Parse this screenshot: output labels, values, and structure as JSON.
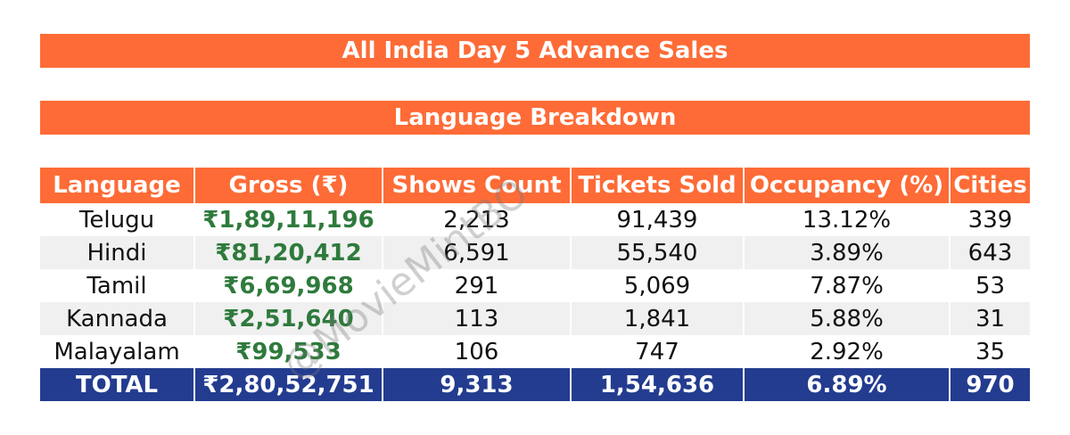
{
  "title": "All India Day 5 Advance Sales",
  "subtitle": "Language Breakdown",
  "columns": [
    "Language",
    "Gross (₹)",
    "Shows Count",
    "Tickets Sold",
    "Occupancy (%)",
    "Cities"
  ],
  "rows": [
    {
      "language": "Telugu",
      "gross": "₹1,89,11,196",
      "shows": "2,213",
      "tickets": "91,439",
      "occupancy": "13.12%",
      "cities": "339"
    },
    {
      "language": "Hindi",
      "gross": "₹81,20,412",
      "shows": "6,591",
      "tickets": "55,540",
      "occupancy": "3.89%",
      "cities": "643"
    },
    {
      "language": "Tamil",
      "gross": "₹6,69,968",
      "shows": "291",
      "tickets": "5,069",
      "occupancy": "7.87%",
      "cities": "53"
    },
    {
      "language": "Kannada",
      "gross": "₹2,51,640",
      "shows": "113",
      "tickets": "1,841",
      "occupancy": "5.88%",
      "cities": "31"
    },
    {
      "language": "Malayalam",
      "gross": "₹99,533",
      "shows": "106",
      "tickets": "747",
      "occupancy": "2.92%",
      "cities": "35"
    }
  ],
  "total": {
    "label": "TOTAL",
    "gross": "₹2,80,52,751",
    "shows": "9,313",
    "tickets": "1,54,636",
    "occupancy": "6.89%",
    "cities": "970"
  },
  "watermark": "@MovieMintBO",
  "colors": {
    "header": "#fe6b36",
    "total": "#233c8f",
    "gross_text": "#2e7a3c"
  }
}
